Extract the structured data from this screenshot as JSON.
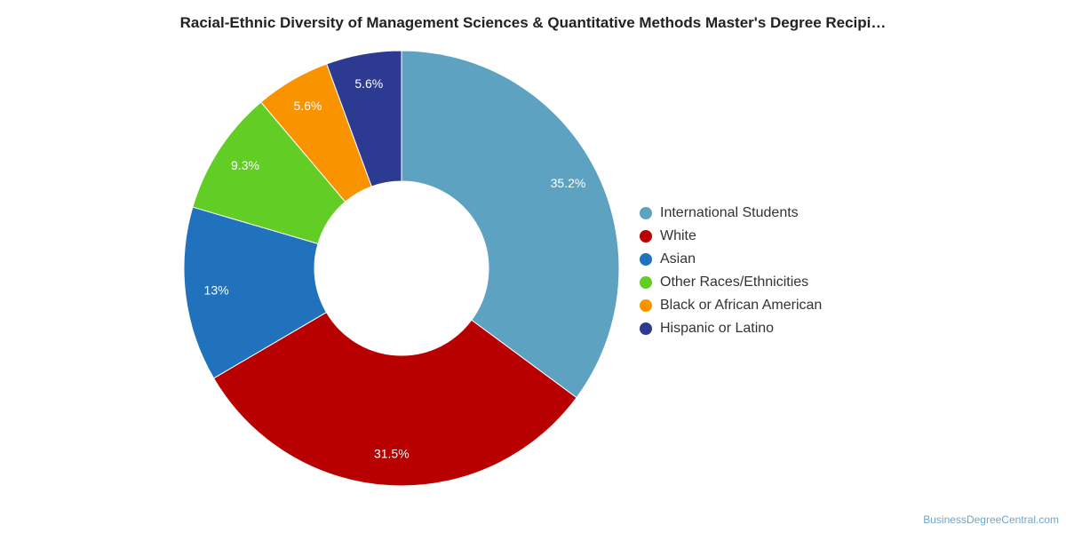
{
  "chart_data": {
    "type": "pie",
    "donut": true,
    "title": "Racial-Ethnic Diversity of Management Sciences & Quantitative Methods Master's Degree Recipi…",
    "legend_position": "right",
    "slices": [
      {
        "label": "International Students",
        "value": 35.2,
        "display": "35.2%",
        "color": "#5da2c0"
      },
      {
        "label": "White",
        "value": 31.5,
        "display": "31.5%",
        "color": "#b80000"
      },
      {
        "label": "Asian",
        "value": 13,
        "display": "13%",
        "color": "#1f72bb"
      },
      {
        "label": "Other Races/Ethnicities",
        "value": 9.3,
        "display": "9.3%",
        "color": "#62cd25"
      },
      {
        "label": "Black or African American",
        "value": 5.6,
        "display": "5.6%",
        "color": "#f99400"
      },
      {
        "label": "Hispanic or Latino",
        "value": 5.6,
        "display": "5.6%",
        "color": "#2d3a91"
      }
    ]
  },
  "credit": "BusinessDegreeCentral.com"
}
